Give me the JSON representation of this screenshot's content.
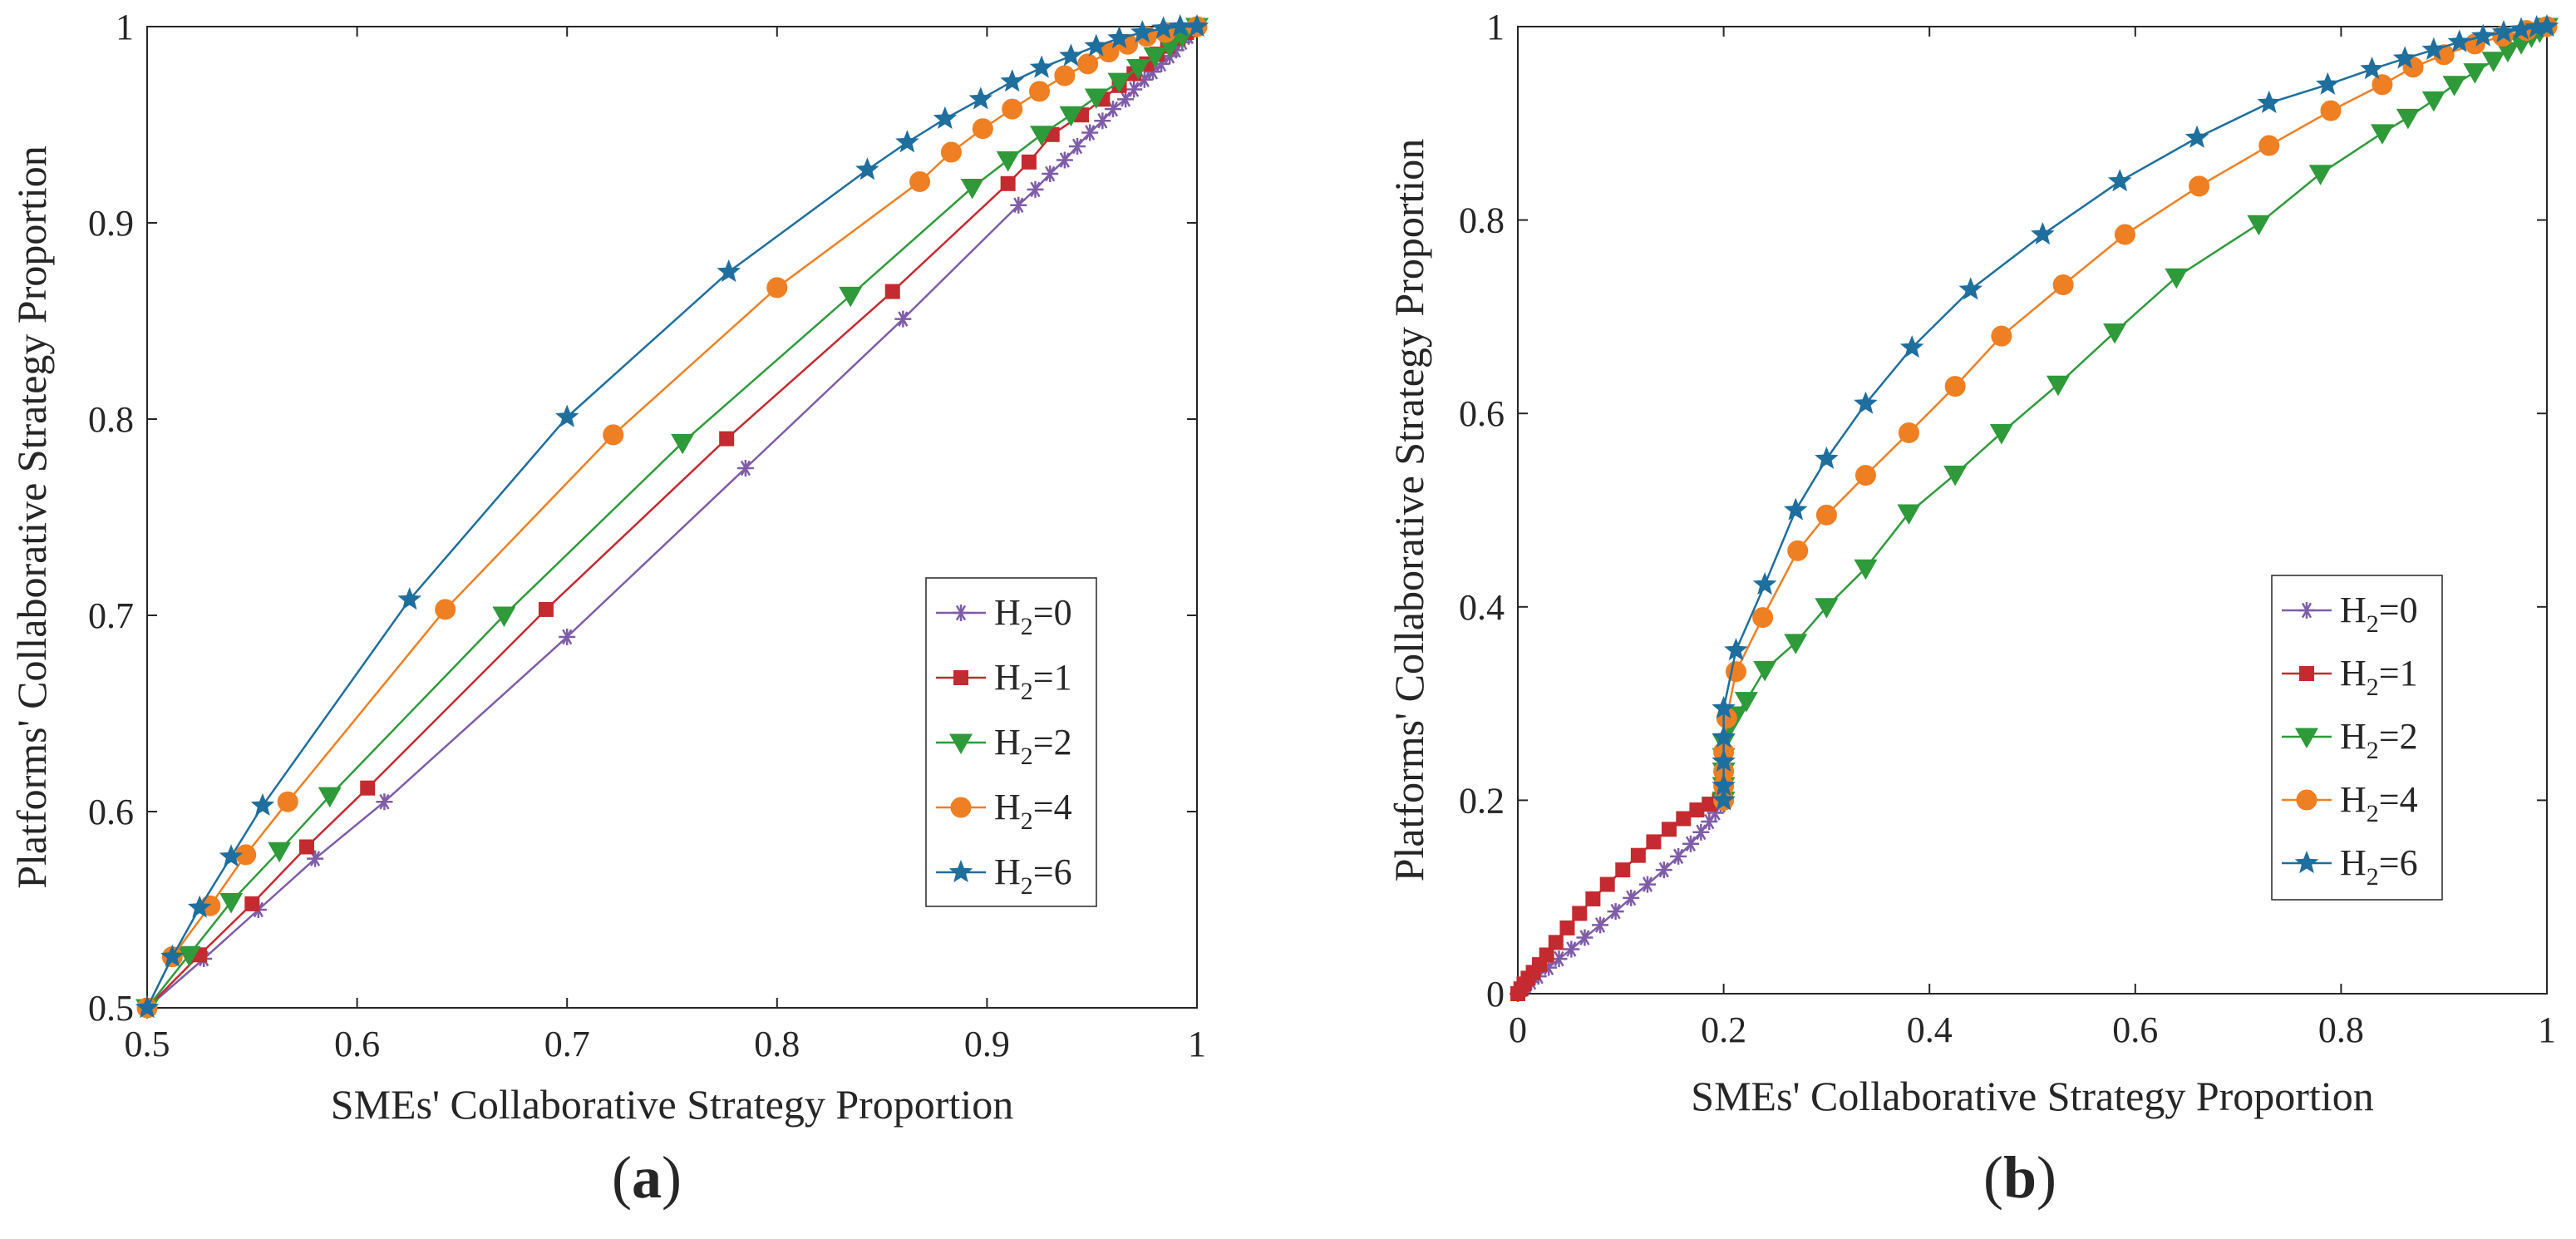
{
  "colors": {
    "H0": "#7e5ca8",
    "H1": "#c42a2f",
    "H2": "#2e9a3a",
    "H4": "#ef7f23",
    "H6": "#1e6e9e",
    "axis": "#262626"
  },
  "legend_labels": [
    {
      "pre": "H",
      "sub": "2",
      "post": "=0"
    },
    {
      "pre": "H",
      "sub": "2",
      "post": "=1"
    },
    {
      "pre": "H",
      "sub": "2",
      "post": "=2"
    },
    {
      "pre": "H",
      "sub": "2",
      "post": "=4"
    },
    {
      "pre": "H",
      "sub": "2",
      "post": "=6"
    }
  ],
  "chart_data": [
    {
      "type": "line",
      "panel_label": "a",
      "xlabel": "SMEs' Collaborative Strategy Proportion",
      "ylabel": "Platforms' Collaborative Strategy Proportion",
      "xlim": [
        0.5,
        1
      ],
      "ylim": [
        0.5,
        1
      ],
      "xticks": [
        0.5,
        0.6,
        0.7,
        0.8,
        0.9,
        1
      ],
      "yticks": [
        0.5,
        0.6,
        0.7,
        0.8,
        0.9,
        1
      ],
      "xtick_labels": [
        "0.5",
        "0.6",
        "0.7",
        "0.8",
        "0.9",
        "1"
      ],
      "ytick_labels": [
        "0.5",
        "0.6",
        "0.7",
        "0.8",
        "0.9",
        "1"
      ],
      "grid": false,
      "legend_position": "right",
      "series": [
        {
          "name": "H2=0",
          "marker": "asterisk",
          "color_key": "H0",
          "points": [
            [
              0.5,
              0.5
            ],
            [
              0.527,
              0.525
            ],
            [
              0.553,
              0.55
            ],
            [
              0.58,
              0.576
            ],
            [
              0.613,
              0.605
            ],
            [
              0.7,
              0.689
            ],
            [
              0.785,
              0.775
            ],
            [
              0.86,
              0.851
            ],
            [
              0.915,
              0.909
            ],
            [
              0.923,
              0.917
            ],
            [
              0.93,
              0.925
            ],
            [
              0.937,
              0.932
            ],
            [
              0.943,
              0.939
            ],
            [
              0.949,
              0.946
            ],
            [
              0.955,
              0.952
            ],
            [
              0.96,
              0.958
            ],
            [
              0.966,
              0.963
            ],
            [
              0.97,
              0.968
            ],
            [
              0.975,
              0.973
            ],
            [
              0.979,
              0.977
            ],
            [
              0.983,
              0.981
            ],
            [
              0.987,
              0.985
            ],
            [
              0.99,
              0.988
            ],
            [
              0.993,
              0.992
            ],
            [
              0.996,
              0.995
            ],
            [
              1,
              1
            ]
          ]
        },
        {
          "name": "H2=1",
          "marker": "square",
          "color_key": "H1",
          "points": [
            [
              0.5,
              0.5
            ],
            [
              0.525,
              0.527
            ],
            [
              0.55,
              0.553
            ],
            [
              0.576,
              0.582
            ],
            [
              0.605,
              0.612
            ],
            [
              0.69,
              0.703
            ],
            [
              0.776,
              0.79
            ],
            [
              0.855,
              0.865
            ],
            [
              0.91,
              0.92
            ],
            [
              0.92,
              0.931
            ],
            [
              0.931,
              0.945
            ],
            [
              0.945,
              0.955
            ],
            [
              0.955,
              0.963
            ],
            [
              0.963,
              0.97
            ],
            [
              0.97,
              0.976
            ],
            [
              0.976,
              0.981
            ],
            [
              0.981,
              0.986
            ],
            [
              0.986,
              0.99
            ],
            [
              0.991,
              0.994
            ],
            [
              0.995,
              0.997
            ],
            [
              1,
              1
            ]
          ]
        },
        {
          "name": "H2=2",
          "marker": "triangle-down",
          "color_key": "H2",
          "points": [
            [
              0.5,
              0.5
            ],
            [
              0.52,
              0.527
            ],
            [
              0.54,
              0.554
            ],
            [
              0.563,
              0.58
            ],
            [
              0.587,
              0.608
            ],
            [
              0.67,
              0.7
            ],
            [
              0.755,
              0.788
            ],
            [
              0.835,
              0.863
            ],
            [
              0.893,
              0.918
            ],
            [
              0.91,
              0.932
            ],
            [
              0.926,
              0.945
            ],
            [
              0.94,
              0.955
            ],
            [
              0.952,
              0.964
            ],
            [
              0.963,
              0.972
            ],
            [
              0.972,
              0.979
            ],
            [
              0.98,
              0.985
            ],
            [
              0.987,
              0.99
            ],
            [
              0.993,
              0.995
            ],
            [
              1,
              1
            ]
          ]
        },
        {
          "name": "H2=4",
          "marker": "circle",
          "color_key": "H4",
          "points": [
            [
              0.5,
              0.5
            ],
            [
              0.512,
              0.526
            ],
            [
              0.53,
              0.552
            ],
            [
              0.547,
              0.578
            ],
            [
              0.567,
              0.605
            ],
            [
              0.642,
              0.703
            ],
            [
              0.722,
              0.792
            ],
            [
              0.8,
              0.867
            ],
            [
              0.868,
              0.921
            ],
            [
              0.883,
              0.936
            ],
            [
              0.898,
              0.948
            ],
            [
              0.912,
              0.958
            ],
            [
              0.925,
              0.967
            ],
            [
              0.937,
              0.975
            ],
            [
              0.948,
              0.981
            ],
            [
              0.958,
              0.987
            ],
            [
              0.967,
              0.991
            ],
            [
              0.976,
              0.995
            ],
            [
              0.985,
              0.997
            ],
            [
              1,
              1
            ]
          ]
        },
        {
          "name": "H2=6",
          "marker": "star",
          "color_key": "H6",
          "points": [
            [
              0.5,
              0.5
            ],
            [
              0.512,
              0.526
            ],
            [
              0.525,
              0.551
            ],
            [
              0.54,
              0.577
            ],
            [
              0.555,
              0.603
            ],
            [
              0.625,
              0.708
            ],
            [
              0.7,
              0.801
            ],
            [
              0.777,
              0.875
            ],
            [
              0.843,
              0.927
            ],
            [
              0.862,
              0.941
            ],
            [
              0.88,
              0.953
            ],
            [
              0.897,
              0.963
            ],
            [
              0.912,
              0.972
            ],
            [
              0.926,
              0.979
            ],
            [
              0.94,
              0.985
            ],
            [
              0.952,
              0.99
            ],
            [
              0.963,
              0.994
            ],
            [
              0.974,
              0.997
            ],
            [
              0.984,
              0.999
            ],
            [
              0.992,
              1.0
            ],
            [
              1,
              1
            ]
          ]
        }
      ]
    },
    {
      "type": "line",
      "panel_label": "b",
      "xlabel": "SMEs' Collaborative Strategy Proportion",
      "ylabel": "Platforms' Collaborative Strategy Proportion",
      "xlim": [
        0,
        1
      ],
      "ylim": [
        0,
        1
      ],
      "xticks": [
        0,
        0.2,
        0.4,
        0.6,
        0.8,
        1
      ],
      "yticks": [
        0,
        0.2,
        0.4,
        0.6,
        0.8,
        1
      ],
      "xtick_labels": [
        "0",
        "0.2",
        "0.4",
        "0.6",
        "0.8",
        "1"
      ],
      "ytick_labels": [
        "0",
        "0.2",
        "0.4",
        "0.6",
        "0.8",
        "1"
      ],
      "grid": false,
      "legend_position": "right",
      "series": [
        {
          "name": "H2=0",
          "marker": "asterisk",
          "color_key": "H0",
          "points": [
            [
              0,
              0
            ],
            [
              0.004,
              0.004
            ],
            [
              0.008,
              0.008
            ],
            [
              0.013,
              0.012
            ],
            [
              0.02,
              0.018
            ],
            [
              0.03,
              0.027
            ],
            [
              0.04,
              0.036
            ],
            [
              0.052,
              0.046
            ],
            [
              0.065,
              0.058
            ],
            [
              0.08,
              0.071
            ],
            [
              0.095,
              0.085
            ],
            [
              0.11,
              0.099
            ],
            [
              0.126,
              0.113
            ],
            [
              0.142,
              0.128
            ],
            [
              0.156,
              0.142
            ],
            [
              0.168,
              0.155
            ],
            [
              0.178,
              0.167
            ],
            [
              0.186,
              0.178
            ],
            [
              0.192,
              0.187
            ],
            [
              0.197,
              0.195
            ],
            [
              0.2,
              0.2
            ]
          ]
        },
        {
          "name": "H2=1",
          "marker": "square",
          "color_key": "H1",
          "points": [
            [
              0,
              0
            ],
            [
              0.003,
              0.005
            ],
            [
              0.006,
              0.01
            ],
            [
              0.01,
              0.016
            ],
            [
              0.015,
              0.022
            ],
            [
              0.021,
              0.03
            ],
            [
              0.028,
              0.04
            ],
            [
              0.037,
              0.053
            ],
            [
              0.048,
              0.068
            ],
            [
              0.06,
              0.083
            ],
            [
              0.073,
              0.098
            ],
            [
              0.087,
              0.113
            ],
            [
              0.102,
              0.128
            ],
            [
              0.117,
              0.143
            ],
            [
              0.132,
              0.157
            ],
            [
              0.147,
              0.17
            ],
            [
              0.161,
              0.181
            ],
            [
              0.174,
              0.19
            ],
            [
              0.186,
              0.196
            ],
            [
              0.196,
              0.2
            ],
            [
              0.2,
              0.2
            ]
          ]
        },
        {
          "name": "H2=2",
          "marker": "triangle-down",
          "color_key": "H2",
          "points": [
            [
              0.2,
              0.2
            ],
            [
              0.2,
              0.215
            ],
            [
              0.2,
              0.23
            ],
            [
              0.2,
              0.245
            ],
            [
              0.2,
              0.26
            ],
            [
              0.205,
              0.275
            ],
            [
              0.212,
              0.288
            ],
            [
              0.222,
              0.303
            ],
            [
              0.24,
              0.335
            ],
            [
              0.27,
              0.363
            ],
            [
              0.3,
              0.4
            ],
            [
              0.338,
              0.44
            ],
            [
              0.38,
              0.497
            ],
            [
              0.425,
              0.537
            ],
            [
              0.47,
              0.58
            ],
            [
              0.525,
              0.63
            ],
            [
              0.58,
              0.684
            ],
            [
              0.64,
              0.741
            ],
            [
              0.72,
              0.796
            ],
            [
              0.78,
              0.848
            ],
            [
              0.84,
              0.89
            ],
            [
              0.865,
              0.906
            ],
            [
              0.89,
              0.924
            ],
            [
              0.91,
              0.94
            ],
            [
              0.93,
              0.953
            ],
            [
              0.948,
              0.965
            ],
            [
              0.962,
              0.975
            ],
            [
              0.975,
              0.983
            ],
            [
              0.985,
              0.99
            ],
            [
              0.993,
              0.995
            ],
            [
              1,
              1
            ]
          ]
        },
        {
          "name": "H2=4",
          "marker": "circle",
          "color_key": "H4",
          "points": [
            [
              0.2,
              0.2
            ],
            [
              0.2,
              0.215
            ],
            [
              0.2,
              0.23
            ],
            [
              0.2,
              0.25
            ],
            [
              0.203,
              0.285
            ],
            [
              0.212,
              0.333
            ],
            [
              0.238,
              0.389
            ],
            [
              0.272,
              0.458
            ],
            [
              0.3,
              0.495
            ],
            [
              0.338,
              0.536
            ],
            [
              0.38,
              0.58
            ],
            [
              0.425,
              0.628
            ],
            [
              0.47,
              0.68
            ],
            [
              0.53,
              0.733
            ],
            [
              0.59,
              0.785
            ],
            [
              0.662,
              0.835
            ],
            [
              0.73,
              0.877
            ],
            [
              0.79,
              0.913
            ],
            [
              0.84,
              0.94
            ],
            [
              0.87,
              0.958
            ],
            [
              0.9,
              0.971
            ],
            [
              0.93,
              0.982
            ],
            [
              0.957,
              0.99
            ],
            [
              0.98,
              0.996
            ],
            [
              1,
              1
            ]
          ]
        },
        {
          "name": "H2=6",
          "marker": "star",
          "color_key": "H6",
          "points": [
            [
              0.2,
              0.2
            ],
            [
              0.2,
              0.215
            ],
            [
              0.2,
              0.24
            ],
            [
              0.2,
              0.265
            ],
            [
              0.2,
              0.295
            ],
            [
              0.212,
              0.355
            ],
            [
              0.24,
              0.423
            ],
            [
              0.27,
              0.5
            ],
            [
              0.3,
              0.553
            ],
            [
              0.338,
              0.61
            ],
            [
              0.383,
              0.668
            ],
            [
              0.44,
              0.728
            ],
            [
              0.51,
              0.785
            ],
            [
              0.585,
              0.84
            ],
            [
              0.66,
              0.885
            ],
            [
              0.73,
              0.921
            ],
            [
              0.787,
              0.94
            ],
            [
              0.83,
              0.956
            ],
            [
              0.862,
              0.967
            ],
            [
              0.89,
              0.976
            ],
            [
              0.915,
              0.984
            ],
            [
              0.938,
              0.99
            ],
            [
              0.958,
              0.994
            ],
            [
              0.975,
              0.997
            ],
            [
              0.99,
              0.999
            ],
            [
              1,
              1
            ]
          ]
        }
      ]
    }
  ]
}
